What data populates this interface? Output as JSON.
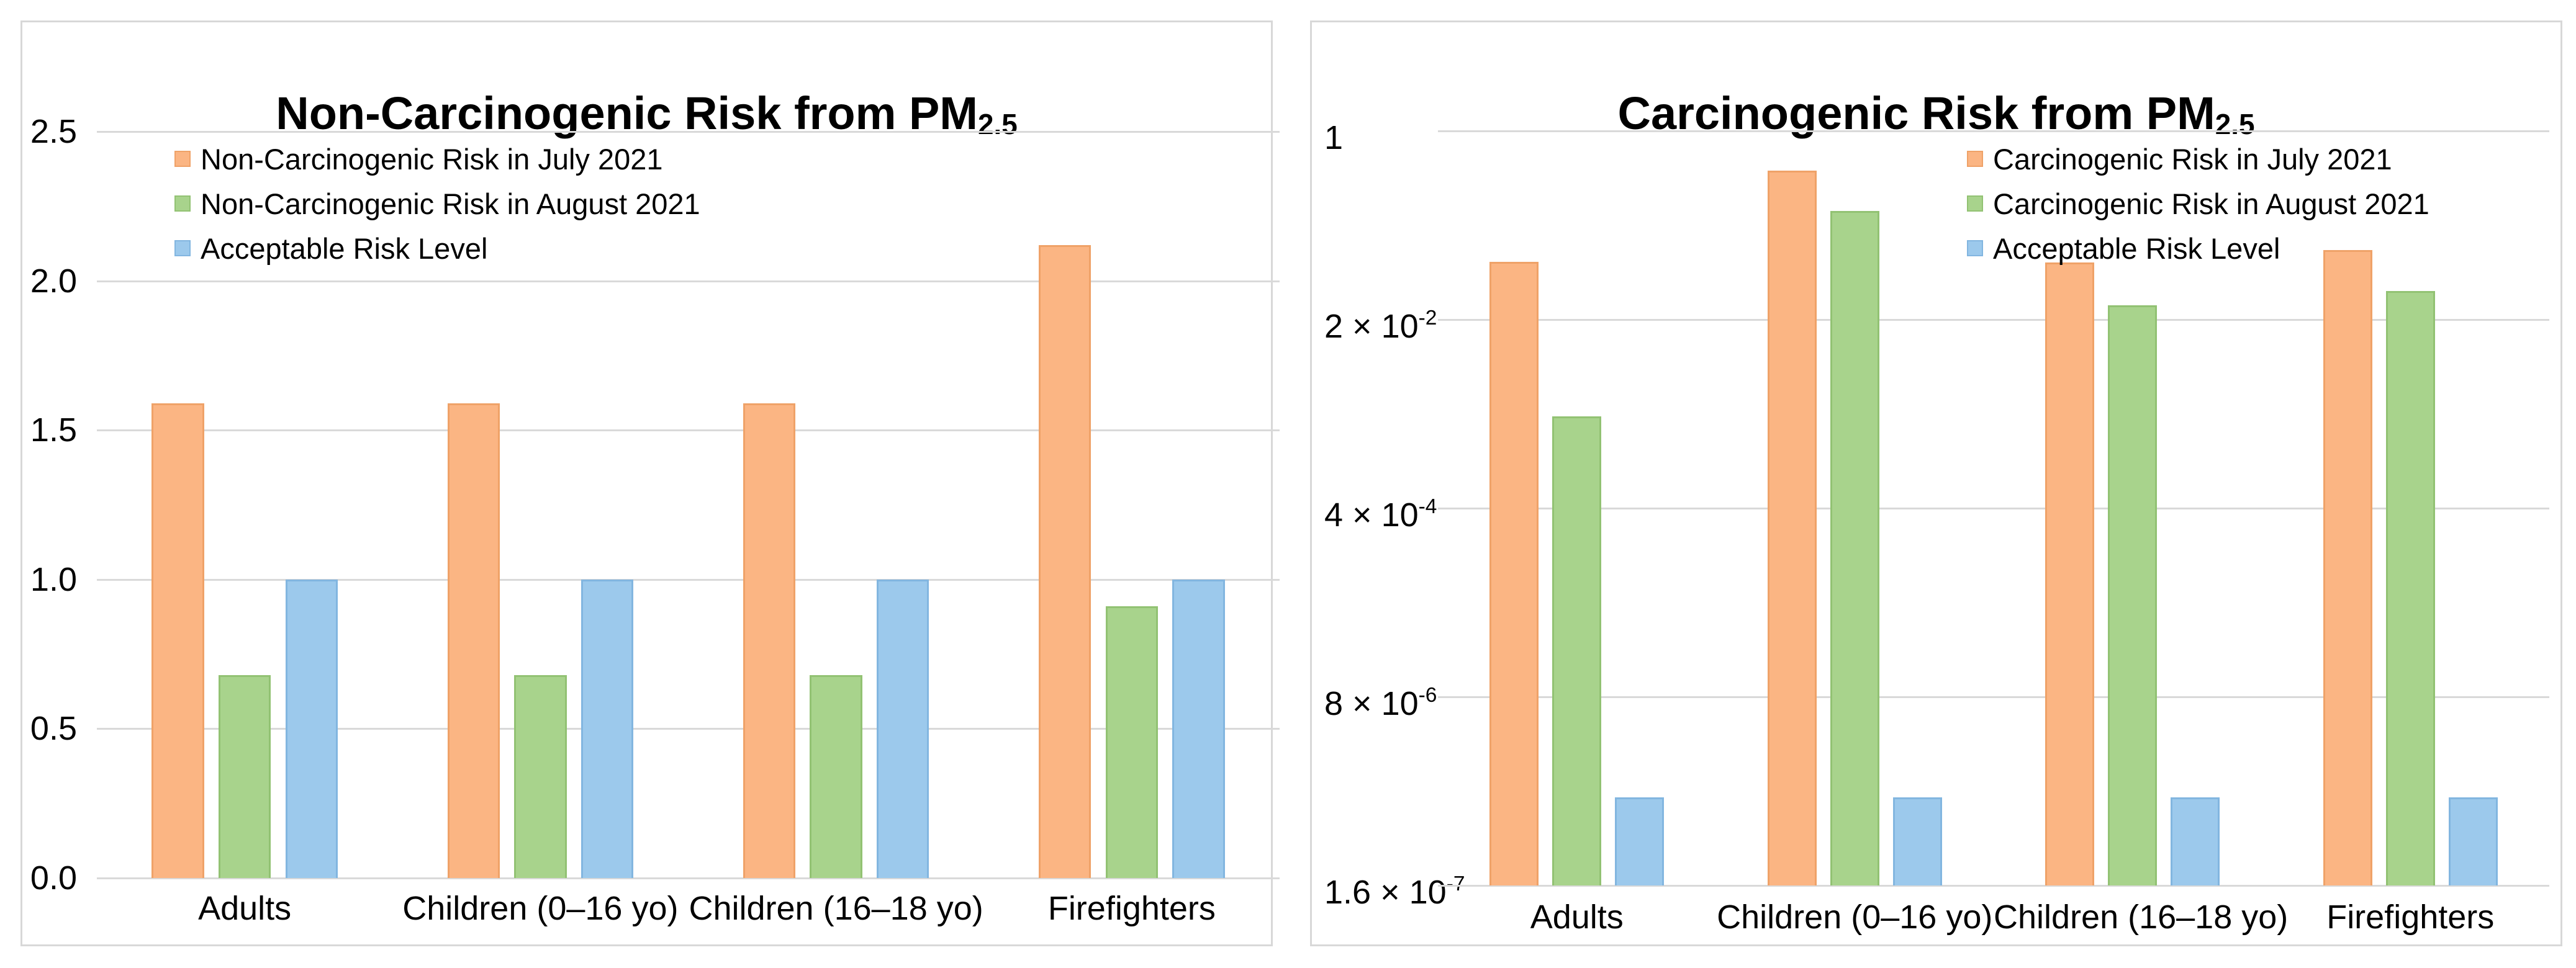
{
  "page": {
    "background": "#ffffff"
  },
  "colors": {
    "grid": "#d9d9d9",
    "panel_border": "#d8d8d8",
    "text": "#000000",
    "july_fill": "#FBB583",
    "july_border": "#EFA268",
    "august_fill": "#A8D38C",
    "august_border": "#92C273",
    "acceptable_fill": "#9CC9EC",
    "acceptable_border": "#82B6E0"
  },
  "chart_data": [
    {
      "type": "bar",
      "title": "Non-Carcinogenic Risk from PM",
      "title_subscript": "2.5",
      "xlabel": "",
      "ylabel": "",
      "y_scale": "linear",
      "ylim": [
        0,
        2.5
      ],
      "grid": true,
      "legend_position": "top-left",
      "yticks": [
        {
          "label": "2.5",
          "value": 2.5
        },
        {
          "label": "2.0",
          "value": 2.0
        },
        {
          "label": "1.5",
          "value": 1.5
        },
        {
          "label": "1.0",
          "value": 1.0
        },
        {
          "label": "0.5",
          "value": 0.5
        },
        {
          "label": "0.0",
          "value": 0.0
        }
      ],
      "categories": [
        "Adults",
        "Children (0–16 yo)",
        "Children (16–18 yo)",
        "Firefighters"
      ],
      "series": [
        {
          "name": "Non-Carcinogenic Risk in July 2021",
          "color_key": "july",
          "values": [
            1.59,
            1.59,
            1.59,
            2.12
          ]
        },
        {
          "name": "Non-Carcinogenic Risk in August 2021",
          "color_key": "august",
          "values": [
            0.68,
            0.68,
            0.68,
            0.91
          ]
        },
        {
          "name": "Acceptable Risk Level",
          "color_key": "acceptable",
          "values": [
            1.0,
            1.0,
            1.0,
            1.0
          ]
        }
      ]
    },
    {
      "type": "bar",
      "title": "Carcinogenic Risk from PM",
      "title_subscript": "2.5",
      "xlabel": "",
      "ylabel": "",
      "y_scale": "log",
      "ylim": [
        1.6e-07,
        1
      ],
      "grid": true,
      "legend_position": "top-right",
      "yticks": [
        {
          "label_base": "1",
          "label_x10": "",
          "label_exp": "",
          "value": 1
        },
        {
          "label_base": "2",
          "label_x10": " × 10",
          "label_exp": "-2",
          "value": 0.02
        },
        {
          "label_base": "4",
          "label_x10": " × 10",
          "label_exp": "-4",
          "value": 0.0004
        },
        {
          "label_base": "8",
          "label_x10": " × 10",
          "label_exp": "-6",
          "value": 8e-06
        },
        {
          "label_base": "1.6",
          "label_x10": " × 10",
          "label_exp": "-7",
          "value": 1.6e-07
        }
      ],
      "categories": [
        "Adults",
        "Children (0–16 yo)",
        "Children (16–18 yo)",
        "Firefighters"
      ],
      "series": [
        {
          "name": "Carcinogenic Risk in July 2021",
          "color_key": "july",
          "values": [
            0.066,
            0.44,
            0.065,
            0.085
          ]
        },
        {
          "name": "Carcinogenic Risk in August 2021",
          "color_key": "august",
          "values": [
            0.0027,
            0.19,
            0.027,
            0.036
          ]
        },
        {
          "name": "Acceptable Risk Level",
          "color_key": "acceptable",
          "values": [
            1e-06,
            1e-06,
            1e-06,
            1e-06
          ]
        }
      ]
    }
  ]
}
